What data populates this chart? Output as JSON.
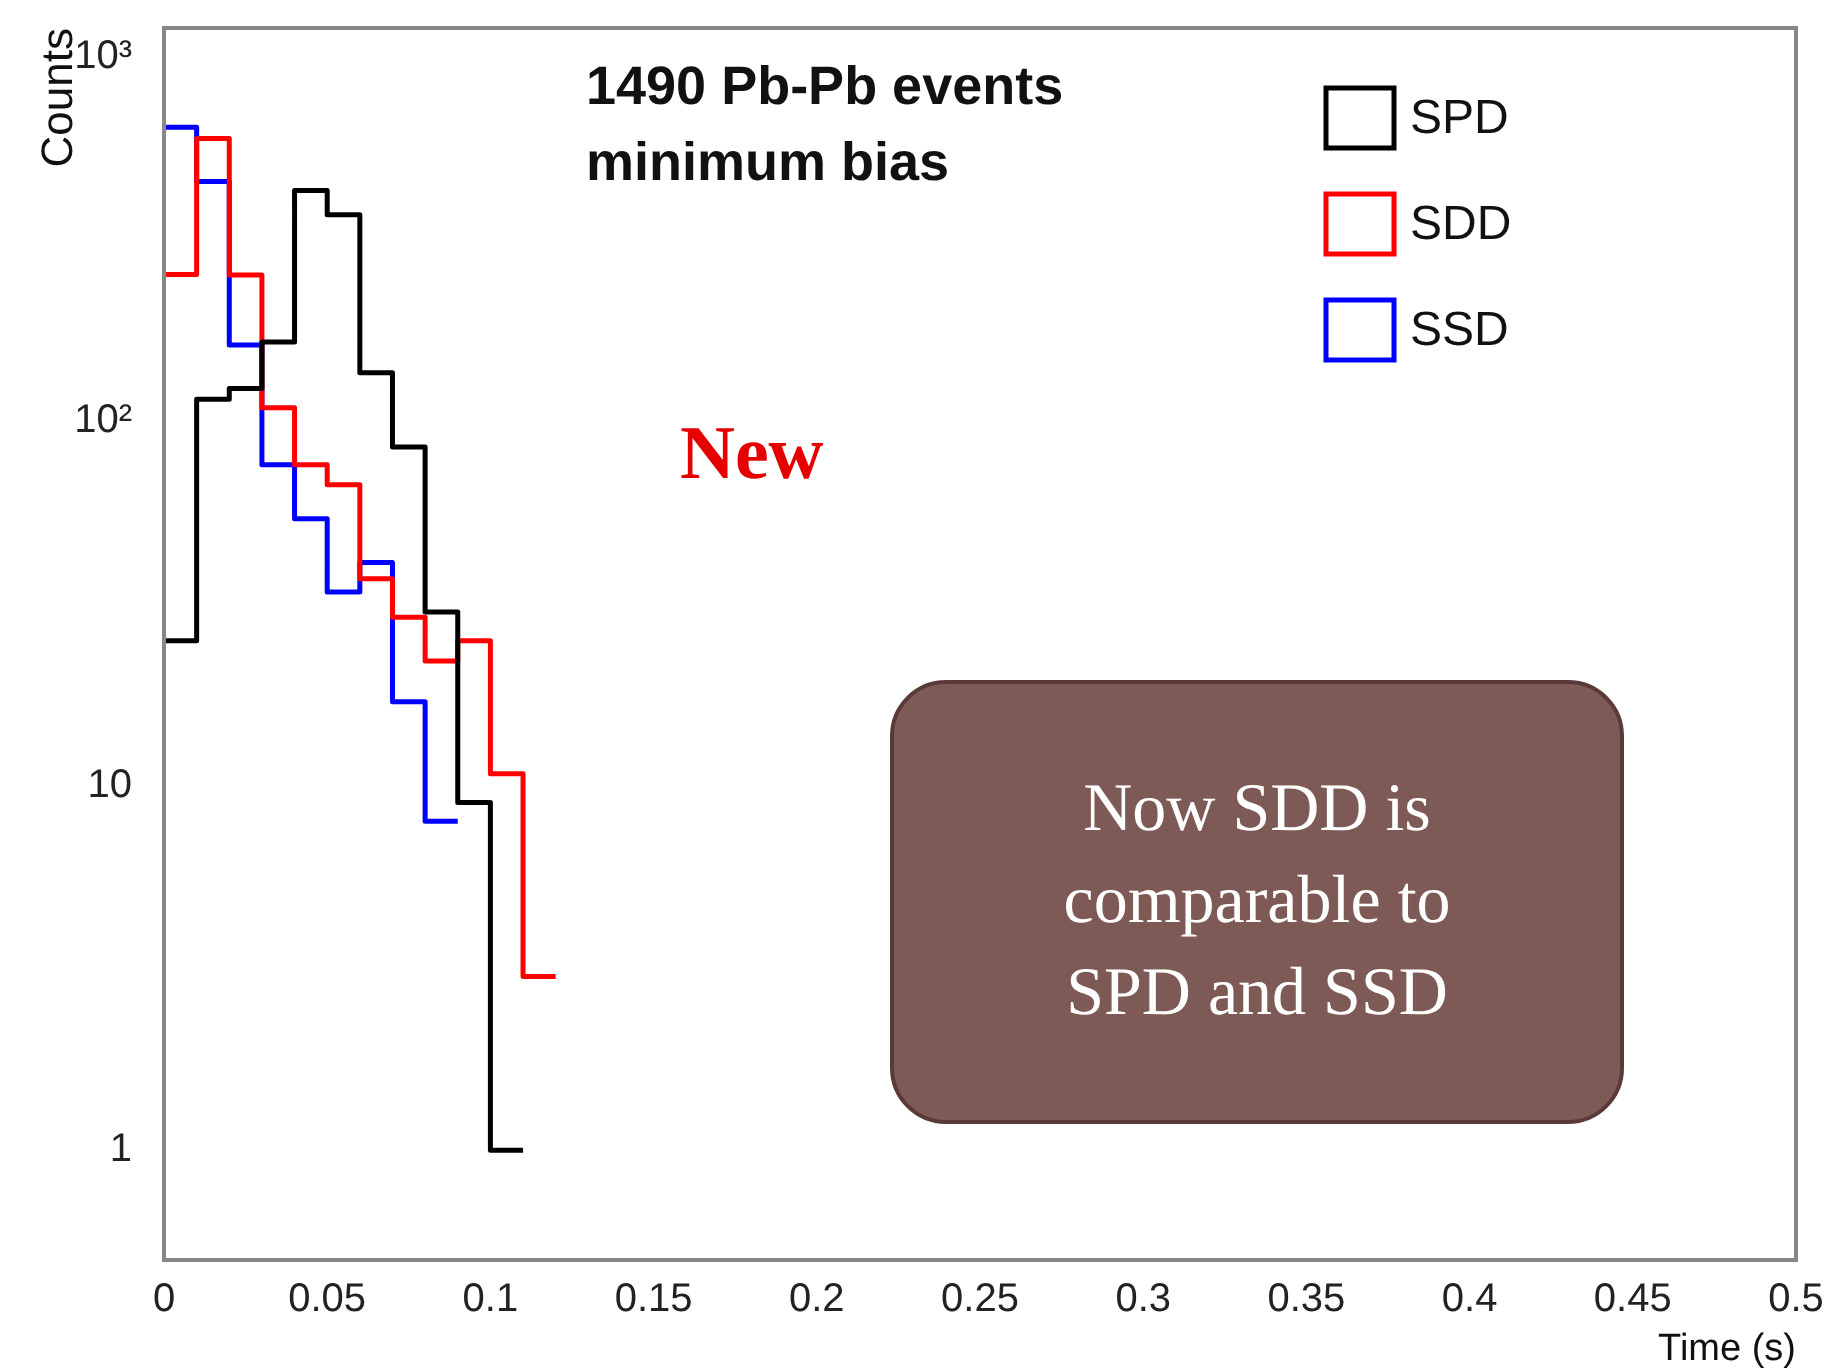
{
  "chart_data": {
    "type": "histogram",
    "title": "1490 Pb-Pb events",
    "subtitle": "minimum bias",
    "xlabel": "Time (s)",
    "ylabel": "Counts",
    "bins": [
      0,
      0.01,
      0.02,
      0.03,
      0.04,
      0.05,
      0.06,
      0.07,
      0.08,
      0.09,
      0.1,
      0.11,
      0.12
    ],
    "series": [
      {
        "name": "SPD",
        "color": "#000000",
        "bins": [
          0,
          0.01,
          0.02,
          0.03,
          0.04,
          0.05,
          0.06,
          0.07,
          0.08,
          0.09,
          0.1,
          0.11
        ],
        "values": [
          25,
          115,
          123,
          165,
          430,
          369,
          136,
          85,
          30,
          9,
          1
        ]
      },
      {
        "name": "SDD",
        "color": "#ff0000",
        "values": [
          253,
          597,
          252,
          109,
          76,
          67,
          37,
          29,
          22,
          25,
          10.8,
          3
        ]
      },
      {
        "name": "SSD",
        "color": "#0000ff",
        "bins": [
          0,
          0.01,
          0.02,
          0.03,
          0.04,
          0.05,
          0.06,
          0.07,
          0.08,
          0.09
        ],
        "values": [
          641,
          455,
          162,
          76,
          54,
          34,
          41,
          17,
          8
        ]
      }
    ],
    "log": "y",
    "xlim": [
      0,
      0.5
    ],
    "ylim": [
      0.5,
      1200
    ],
    "xticks": [
      0,
      0.05,
      0.1,
      0.15,
      0.2,
      0.25,
      0.3,
      0.35,
      0.4,
      0.45,
      0.5
    ],
    "yticks": [
      1,
      10,
      {
        "value": 100,
        "label": "10²"
      },
      {
        "value": 1000,
        "label": "10³"
      }
    ],
    "grid": false,
    "legend": "top right",
    "annotations": [
      "New",
      "Now SDD is comparable to SPD and SSD"
    ]
  }
}
